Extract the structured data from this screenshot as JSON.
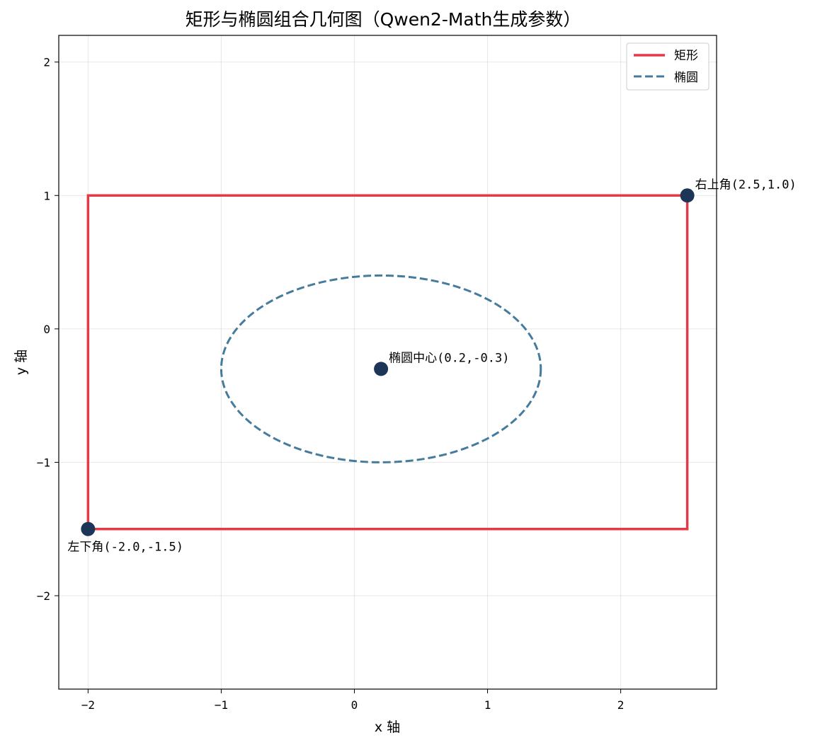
{
  "chart_data": {
    "type": "line",
    "title": "矩形与椭圆组合几何图（Qwen2-Math生成参数）",
    "xlabel": "x 轴",
    "ylabel": "y 轴",
    "xlim": [
      -2.22,
      2.72
    ],
    "ylim": [
      -2.7,
      2.2
    ],
    "xticks": [
      -2,
      -1,
      0,
      1,
      2
    ],
    "yticks": [
      -2,
      -1,
      0,
      1,
      2
    ],
    "xtick_labels": [
      "−2",
      "−1",
      "0",
      "1",
      "2"
    ],
    "ytick_labels": [
      "−2",
      "−1",
      "0",
      "1",
      "2"
    ],
    "grid": true,
    "legend_position": "upper-right",
    "series": [
      {
        "name": "矩形",
        "kind": "rectangle",
        "style": "solid",
        "color": "#e63946",
        "corners": {
          "lower_left": [
            -2.0,
            -1.5
          ],
          "upper_right": [
            2.5,
            1.0
          ]
        }
      },
      {
        "name": "椭圆",
        "kind": "ellipse",
        "style": "dashed",
        "color": "#457b9d",
        "center": [
          0.2,
          -0.3
        ],
        "semi_axis_x": 1.2,
        "semi_axis_y": 0.7
      }
    ],
    "points": [
      {
        "x": -2.0,
        "y": -1.5,
        "label": "左下角(-2.0,-1.5)",
        "label_position": "below-left"
      },
      {
        "x": 2.5,
        "y": 1.0,
        "label": "右上角(2.5,1.0)",
        "label_position": "above-right"
      },
      {
        "x": 0.2,
        "y": -0.3,
        "label": "椭圆中心(0.2,-0.3)",
        "label_position": "above-right"
      }
    ],
    "point_color": "#1d3557"
  }
}
